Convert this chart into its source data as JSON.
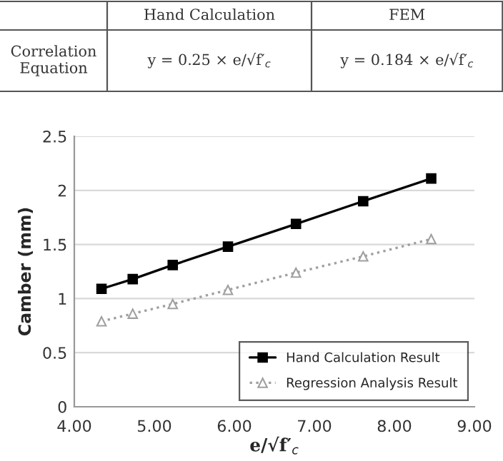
{
  "chart_data": {
    "type": "line",
    "xlabel": "e/√f′$_{c}$",
    "ylabel": "Camber (mm)",
    "annotations": [
      "Hand Calculation",
      "FEM",
      "Correlation Equation",
      "y = 0.25 × e/√f′$_{c}$",
      "y = 0.184 × e/√f′$_{c}$"
    ],
    "series": [
      {
        "name": "Hand Calculation Result",
        "color": "#000000",
        "marker": "square",
        "line_style": "solid",
        "x": [
          4.34,
          4.73,
          5.23,
          5.92,
          6.77,
          7.61,
          8.46
        ],
        "values": [
          1.09,
          1.18,
          1.31,
          1.48,
          1.69,
          1.9,
          2.11
        ]
      },
      {
        "name": "Regression Analysis Result",
        "color": "#a0a0a0",
        "marker": "triangle",
        "line_style": "dotted",
        "x": [
          4.34,
          4.73,
          5.23,
          5.92,
          6.77,
          7.61,
          8.46
        ],
        "values": [
          0.79,
          0.86,
          0.95,
          1.08,
          1.24,
          1.39,
          1.55
        ]
      }
    ],
    "xlim": [
      4,
      9
    ],
    "xticks": [
      {
        "value": 4,
        "label": "4.00"
      },
      {
        "value": 5,
        "label": "5.00"
      },
      {
        "value": 6,
        "label": "6.00"
      },
      {
        "value": 7,
        "label": "7.00"
      },
      {
        "value": 8,
        "label": "8.00"
      },
      {
        "value": 9,
        "label": "9.00"
      }
    ],
    "ylim": [
      0,
      2.5
    ],
    "yticks": [
      0,
      0.5,
      1,
      1.5,
      2,
      2.5
    ],
    "grid": "y",
    "legend": "bottom right"
  }
}
